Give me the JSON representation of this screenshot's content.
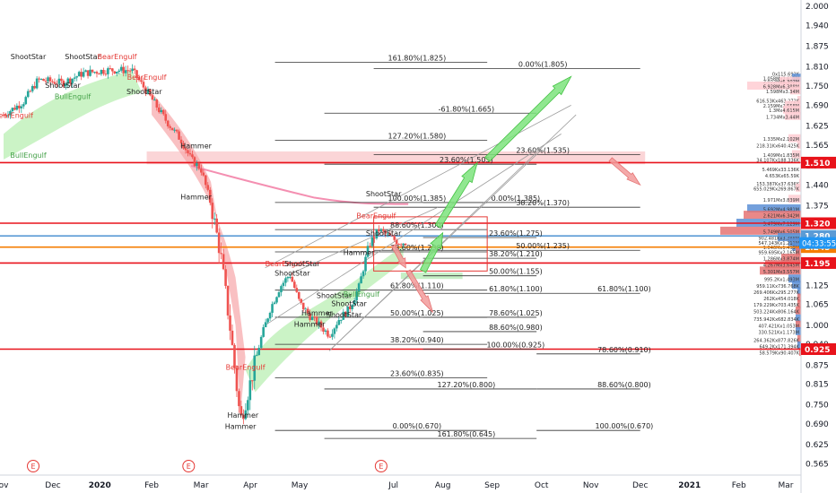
{
  "chart_data": {
    "type": "candlestick",
    "y_axis": {
      "ylim": [
        0.53,
        2.02
      ],
      "ticks": [
        "2.000",
        "1.940",
        "1.875",
        "1.810",
        "1.750",
        "1.690",
        "1.625",
        "1.565",
        "1.500",
        "1.440",
        "1.375",
        "1.315",
        "1.250",
        "1.190",
        "1.125",
        "1.065",
        "1.000",
        "0.940",
        "0.875",
        "0.815",
        "0.750",
        "0.690",
        "0.625",
        "0.565"
      ],
      "tick_values": [
        2.0,
        1.94,
        1.875,
        1.81,
        1.75,
        1.69,
        1.625,
        1.565,
        1.5,
        1.44,
        1.375,
        1.315,
        1.25,
        1.19,
        1.125,
        1.065,
        1.0,
        0.94,
        0.875,
        0.815,
        0.75,
        0.69,
        0.625,
        0.565
      ]
    },
    "x_axis": {
      "labels": [
        "ov",
        "Dec",
        "2020",
        "Feb",
        "Mar",
        "Apr",
        "May",
        "Jul",
        "Aug",
        "Sep",
        "Oct",
        "Nov",
        "Dec",
        "2021",
        "Feb",
        "Mar"
      ],
      "bold": [
        "2020",
        "2021"
      ],
      "months_index": [
        -0.3,
        0.7,
        1.65,
        2.7,
        3.7,
        4.7,
        5.7,
        7.6,
        8.6,
        9.6,
        10.6,
        11.6,
        12.6,
        13.6,
        14.6,
        15.55
      ]
    },
    "earnings_markers": {
      "label": "E",
      "months_index": [
        0.3,
        3.45,
        7.35
      ]
    },
    "price_levels": [
      {
        "value": 1.51,
        "label": "1.510",
        "color": "#e8131b"
      },
      {
        "value": 1.32,
        "label": "1.320",
        "color": "#e8131b"
      },
      {
        "value": 1.28,
        "label": "1.280",
        "color": "#5b9bd5"
      },
      {
        "value": 1.245,
        "label": "1.245",
        "color": "#f57c00"
      },
      {
        "value": 1.195,
        "label": "1.195",
        "color": "#e8131b"
      },
      {
        "value": 0.925,
        "label": "0.925",
        "color": "#e8131b"
      }
    ],
    "current_price": {
      "value": 1.258,
      "label": "04:33:55",
      "color": "#2196f3"
    },
    "fib_levels": [
      {
        "value": 1.825,
        "label": "161.80%(1.825)",
        "m0": 5.2,
        "m1": 9.5
      },
      {
        "value": 1.805,
        "label": "0.00%(1.805)",
        "m0": 7.2,
        "m1": 12.6
      },
      {
        "value": 1.665,
        "label": "-61.80%(1.665)",
        "m0": 6.2,
        "m1": 10.5
      },
      {
        "value": 1.58,
        "label": "127.20%(1.580)",
        "m0": 5.2,
        "m1": 9.5
      },
      {
        "value": 1.535,
        "label": "23.60%(1.535)",
        "m0": 7.2,
        "m1": 12.6
      },
      {
        "value": 1.505,
        "label": "23.60%(1.505)",
        "m0": 6.2,
        "m1": 10.5
      },
      {
        "value": 1.385,
        "label": "100.00%(1.385)",
        "m0": 5.2,
        "m1": 9.5
      },
      {
        "value": 1.385,
        "label": "0.00%(1.385)",
        "m0": 8.2,
        "m1": 10.5
      },
      {
        "value": 1.37,
        "label": "38.20%(1.370)",
        "m0": 7.2,
        "m1": 12.6
      },
      {
        "value": 1.3,
        "label": "88.60%(1.300)",
        "m0": 5.2,
        "m1": 9.5
      },
      {
        "value": 1.275,
        "label": "23.60%(1.275)",
        "m0": 8.2,
        "m1": 10.5
      },
      {
        "value": 1.235,
        "label": "50.00%(1.235)",
        "m0": 7.2,
        "m1": 12.6
      },
      {
        "value": 1.23,
        "label": "78.60%(1.230)",
        "m0": 5.2,
        "m1": 9.5
      },
      {
        "value": 1.21,
        "label": "38.20%(1.210)",
        "m0": 8.2,
        "m1": 10.5
      },
      {
        "value": 1.155,
        "label": "50.00%(1.155)",
        "m0": 8.2,
        "m1": 10.5
      },
      {
        "value": 1.11,
        "label": "61.80%(1.110)",
        "m0": 5.2,
        "m1": 9.5
      },
      {
        "value": 1.1,
        "label": "61.80%(1.100)",
        "m0": 8.2,
        "m1": 10.5
      },
      {
        "value": 1.1,
        "label": "61.80%(1.100)",
        "m0": 10.5,
        "m1": 12.6
      },
      {
        "value": 1.025,
        "label": "50.00%(1.025)",
        "m0": 5.2,
        "m1": 9.5
      },
      {
        "value": 1.025,
        "label": "78.60%(1.025)",
        "m0": 8.2,
        "m1": 10.5
      },
      {
        "value": 0.98,
        "label": "88.60%(0.980)",
        "m0": 8.2,
        "m1": 10.5
      },
      {
        "value": 0.94,
        "label": "38.20%(0.940)",
        "m0": 5.2,
        "m1": 9.5
      },
      {
        "value": 0.925,
        "label": "100.00%(0.925)",
        "m0": 8.2,
        "m1": 10.5
      },
      {
        "value": 0.91,
        "label": "78.60%(0.910)",
        "m0": 10.5,
        "m1": 12.6
      },
      {
        "value": 0.835,
        "label": "23.60%(0.835)",
        "m0": 5.2,
        "m1": 9.5
      },
      {
        "value": 0.8,
        "label": "127.20%(0.800)",
        "m0": 6.2,
        "m1": 10.5
      },
      {
        "value": 0.8,
        "label": "88.60%(0.800)",
        "m0": 10.5,
        "m1": 12.6
      },
      {
        "value": 0.67,
        "label": "0.00%(0.670)",
        "m0": 5.2,
        "m1": 9.5
      },
      {
        "value": 0.67,
        "label": "100.00%(0.670)",
        "m0": 10.5,
        "m1": 12.6
      },
      {
        "value": 0.645,
        "label": "161.80%(0.645)",
        "m0": 6.2,
        "m1": 10.5
      }
    ],
    "patterns": [
      {
        "text": "ShootStar",
        "m": 0.2,
        "v": 1.835,
        "color": "#222222"
      },
      {
        "text": "ShootStar",
        "m": 1.3,
        "v": 1.835,
        "color": "#222222"
      },
      {
        "text": "BearEngulf",
        "m": 2.0,
        "v": 1.835,
        "color": "#e53935"
      },
      {
        "text": "BearEngulf",
        "m": 2.6,
        "v": 1.77,
        "color": "#e53935"
      },
      {
        "text": "ShootStar",
        "m": 0.9,
        "v": 1.745,
        "color": "#222222"
      },
      {
        "text": "ShootStar",
        "m": 2.55,
        "v": 1.725,
        "color": "#222222"
      },
      {
        "text": "BullEngulf",
        "m": 1.1,
        "v": 1.71,
        "color": "#43a047"
      },
      {
        "text": "BearEngulf",
        "m": -0.1,
        "v": 1.65,
        "color": "#e53935"
      },
      {
        "text": "BullEngulf",
        "m": 0.2,
        "v": 1.525,
        "color": "#43a047"
      },
      {
        "text": "Hammer",
        "m": 3.6,
        "v": 1.555,
        "color": "#222222"
      },
      {
        "text": "Hammer",
        "m": 3.6,
        "v": 1.395,
        "color": "#222222"
      },
      {
        "text": "ShootStar",
        "m": 7.4,
        "v": 1.405,
        "color": "#222222"
      },
      {
        "text": "BearEngulf",
        "m": 7.25,
        "v": 1.335,
        "color": "#e53935"
      },
      {
        "text": "ShootStar",
        "m": 7.4,
        "v": 1.28,
        "color": "#222222"
      },
      {
        "text": "Hammer",
        "m": 6.9,
        "v": 1.22,
        "color": "#222222"
      },
      {
        "text": "BearEngulf",
        "m": 5.4,
        "v": 1.185,
        "color": "#e53935"
      },
      {
        "text": "ShootStar",
        "m": 5.75,
        "v": 1.185,
        "color": "#222222"
      },
      {
        "text": "ShootStar",
        "m": 5.55,
        "v": 1.155,
        "color": "#222222"
      },
      {
        "text": "ShootStar",
        "m": 6.4,
        "v": 1.085,
        "color": "#222222"
      },
      {
        "text": "BullEngulf",
        "m": 6.95,
        "v": 1.09,
        "color": "#43a047"
      },
      {
        "text": "ShootStar",
        "m": 6.7,
        "v": 1.06,
        "color": "#222222"
      },
      {
        "text": "Hammer",
        "m": 6.05,
        "v": 1.03,
        "color": "#222222"
      },
      {
        "text": "ShootStar",
        "m": 6.6,
        "v": 1.025,
        "color": "#222222"
      },
      {
        "text": "Hammer",
        "m": 5.9,
        "v": 0.995,
        "color": "#222222"
      },
      {
        "text": "BearEngulf",
        "m": 4.6,
        "v": 0.86,
        "color": "#e53935"
      },
      {
        "text": "Hammer",
        "m": 4.55,
        "v": 0.71,
        "color": "#222222"
      },
      {
        "text": "Hammer",
        "m": 4.5,
        "v": 0.675,
        "color": "#222222"
      }
    ],
    "volume_profile": [
      {
        "label": "0x115.692K",
        "v": 1.79,
        "w": 0,
        "c": "#e57373"
      },
      {
        "label": "1.058Mx2.611M",
        "v": 1.775,
        "w": 10,
        "c": "#5c8fd6"
      },
      {
        "label": "2.022Mx6.302M",
        "v": 1.765,
        "w": 24,
        "c": "#ffcdd2"
      },
      {
        "label": "6.928Mx6.388M",
        "v": 1.75,
        "w": 60,
        "c": "#ffcdd2"
      },
      {
        "label": "1.598Mx3.34M",
        "v": 1.735,
        "w": 12,
        "c": "#ffcdd2"
      },
      {
        "label": "616.53Kx463.272K",
        "v": 1.705,
        "w": 4,
        "c": "#ffcdd2"
      },
      {
        "label": "2.159Mx2.558M",
        "v": 1.69,
        "w": 18,
        "c": "#ffcdd2"
      },
      {
        "label": "1.3Mx4.615M",
        "v": 1.675,
        "w": 20,
        "c": "#ffcdd2"
      },
      {
        "label": "1.734Mx3.44M",
        "v": 1.655,
        "w": 18,
        "c": "#ffcdd2"
      },
      {
        "label": "1.335Mx2.102M",
        "v": 1.585,
        "w": 14,
        "c": "#ffcdd2"
      },
      {
        "label": "218.31Kx640.425K",
        "v": 1.565,
        "w": 4,
        "c": "#ffcdd2"
      },
      {
        "label": "1.409Mx1.835M",
        "v": 1.535,
        "w": 10,
        "c": "#ffcdd2"
      },
      {
        "label": "34.107Kx188.336K",
        "v": 1.52,
        "w": 2,
        "c": "#ffcdd2"
      },
      {
        "label": "5.469Kx33.136K",
        "v": 1.49,
        "w": 1,
        "c": "#ffcdd2"
      },
      {
        "label": "4.653Kx65.59K",
        "v": 1.47,
        "w": 1,
        "c": "#ffcdd2"
      },
      {
        "label": "153.387Kx37.636K",
        "v": 1.445,
        "w": 2,
        "c": "#ffcdd2"
      },
      {
        "label": "655.029Kx269.867K",
        "v": 1.43,
        "w": 6,
        "c": "#ffcdd2"
      },
      {
        "label": "1.971Mx3.839M",
        "v": 1.395,
        "w": 14,
        "c": "#ffcdd2"
      },
      {
        "label": "5.692Mx4.981M",
        "v": 1.365,
        "w": 60,
        "c": "#5c8fd6"
      },
      {
        "label": "2.621Mx6.342M",
        "v": 1.345,
        "w": 64,
        "c": "#e57373"
      },
      {
        "label": "3.479Mx7.129M",
        "v": 1.32,
        "w": 72,
        "c": "#5c8fd6"
      },
      {
        "label": "5.749Mx6.505M",
        "v": 1.295,
        "w": 90,
        "c": "#e57373"
      },
      {
        "label": "902.481Kx3.388M",
        "v": 1.275,
        "w": 26,
        "c": "#5c8fd6"
      },
      {
        "label": "547.143Kx1.211M",
        "v": 1.26,
        "w": 14,
        "c": "#5c8fd6"
      },
      {
        "label": "1.046Mx1.493M",
        "v": 1.245,
        "w": 10,
        "c": "#5c8fd6"
      },
      {
        "label": "959.695Kx2.165M",
        "v": 1.23,
        "w": 6,
        "c": "#e57373"
      },
      {
        "label": "1.286Mx3.874M",
        "v": 1.21,
        "w": 22,
        "c": "#e57373"
      },
      {
        "label": "4.267Mx3.645M",
        "v": 1.19,
        "w": 40,
        "c": "#e57373"
      },
      {
        "label": "5.301Mx3.557M",
        "v": 1.17,
        "w": 46,
        "c": "#e57373"
      },
      {
        "label": "995.2Kx1.493M",
        "v": 1.145,
        "w": 14,
        "c": "#5c8fd6"
      },
      {
        "label": "959.11Kx736.768K",
        "v": 1.125,
        "w": 10,
        "c": "#5c8fd6"
      },
      {
        "label": "269.406Kx295.277K",
        "v": 1.105,
        "w": 4,
        "c": "#5c8fd6"
      },
      {
        "label": "262Kx454.018K",
        "v": 1.085,
        "w": 4,
        "c": "#e57373"
      },
      {
        "label": "179.229Kx703.435K",
        "v": 1.065,
        "w": 4,
        "c": "#e57373"
      },
      {
        "label": "503.224Kx806.164K",
        "v": 1.045,
        "w": 6,
        "c": "#e57373"
      },
      {
        "label": "735.942Kx682.834K",
        "v": 1.02,
        "w": 6,
        "c": "#5c8fd6"
      },
      {
        "label": "407.421Kx1.053M",
        "v": 1.0,
        "w": 6,
        "c": "#e57373"
      },
      {
        "label": "330.521Kx1.173M",
        "v": 0.98,
        "w": 6,
        "c": "#5c8fd6"
      },
      {
        "label": "264.362Kx877.826K",
        "v": 0.955,
        "w": 4,
        "c": "#e57373"
      },
      {
        "label": "649.2Kx171.394K",
        "v": 0.935,
        "w": 4,
        "c": "#5c8fd6"
      },
      {
        "label": "58.579Kx90.407K",
        "v": 0.915,
        "w": 2,
        "c": "#e57373"
      }
    ],
    "projection_arrows": [
      {
        "color": "green",
        "from": [
          8.2,
          1.17
        ],
        "to": [
          8.6,
          1.29
        ]
      },
      {
        "color": "green",
        "from": [
          8.5,
          1.31
        ],
        "to": [
          9.3,
          1.51
        ]
      },
      {
        "color": "green",
        "from": [
          9.5,
          1.52
        ],
        "to": [
          11.2,
          1.78
        ]
      },
      {
        "color": "red",
        "from": [
          7.6,
          1.25
        ],
        "to": [
          7.85,
          1.18
        ]
      },
      {
        "color": "red",
        "from": [
          7.9,
          1.17
        ],
        "to": [
          8.4,
          1.04
        ]
      },
      {
        "color": "red",
        "from": [
          12.0,
          1.52
        ],
        "to": [
          12.6,
          1.44
        ]
      }
    ],
    "price_path": [
      [
        -0.3,
        1.66
      ],
      [
        0.1,
        1.7
      ],
      [
        0.4,
        1.77
      ],
      [
        0.9,
        1.76
      ],
      [
        1.3,
        1.79
      ],
      [
        1.8,
        1.8
      ],
      [
        2.3,
        1.8
      ],
      [
        2.7,
        1.71
      ],
      [
        3.0,
        1.64
      ],
      [
        3.3,
        1.58
      ],
      [
        3.5,
        1.52
      ],
      [
        3.7,
        1.49
      ],
      [
        3.9,
        1.38
      ],
      [
        4.1,
        1.22
      ],
      [
        4.3,
        0.98
      ],
      [
        4.5,
        0.7
      ],
      [
        4.7,
        0.82
      ],
      [
        4.9,
        0.95
      ],
      [
        5.1,
        1.05
      ],
      [
        5.3,
        1.12
      ],
      [
        5.5,
        1.16
      ],
      [
        5.7,
        1.07
      ],
      [
        5.9,
        1.03
      ],
      [
        6.1,
        1.0
      ],
      [
        6.3,
        0.97
      ],
      [
        6.5,
        1.02
      ],
      [
        6.7,
        1.05
      ],
      [
        6.9,
        1.12
      ],
      [
        7.1,
        1.25
      ],
      [
        7.3,
        1.3
      ],
      [
        7.5,
        1.28
      ],
      [
        7.7,
        1.26
      ],
      [
        7.85,
        1.26
      ]
    ]
  }
}
